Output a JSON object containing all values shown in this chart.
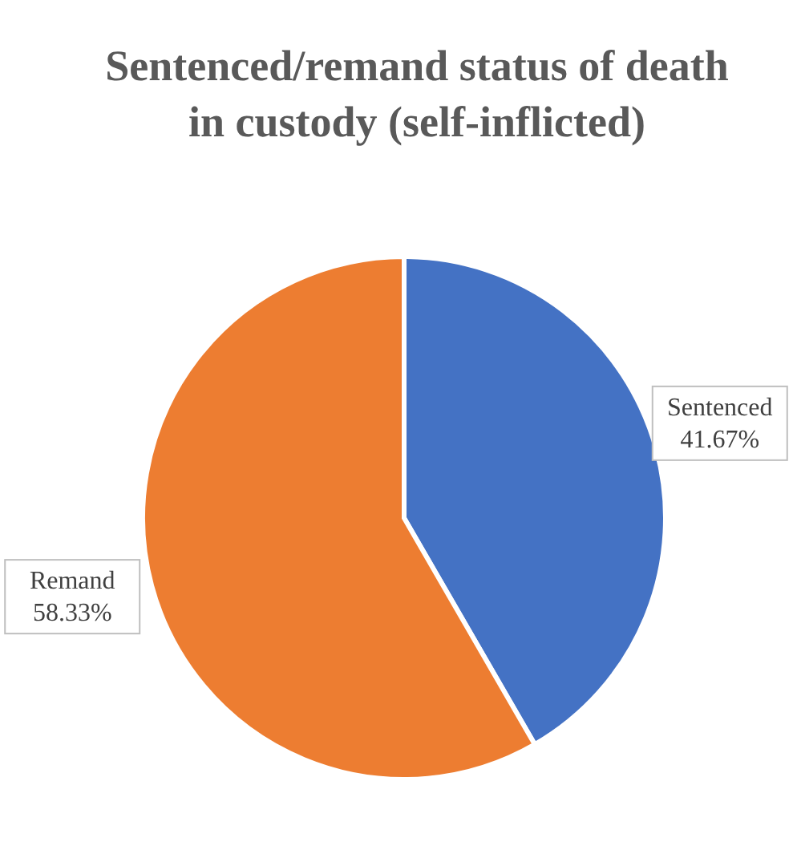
{
  "chart_data": {
    "type": "pie",
    "title": "Sentenced/remand status of death in custody (self-inflicted)",
    "categories": [
      "Sentenced",
      "Remand"
    ],
    "values": [
      41.67,
      58.33
    ],
    "colors": [
      "#4472c4",
      "#ed7d31"
    ],
    "value_labels": [
      "41.67%",
      "58.33%"
    ]
  }
}
